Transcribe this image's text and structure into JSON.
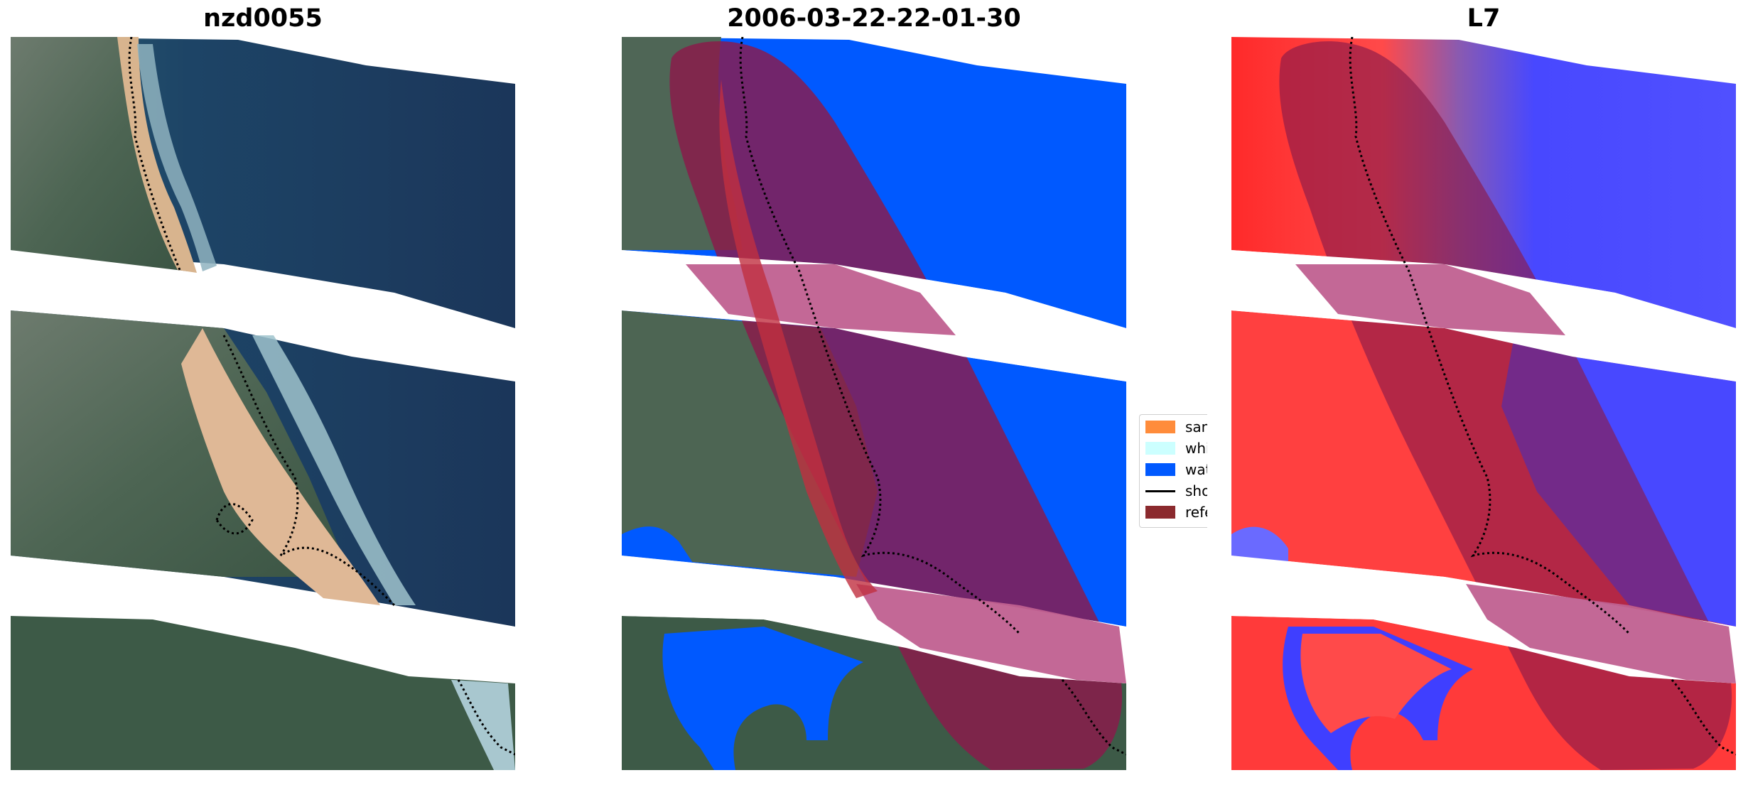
{
  "panels": [
    {
      "id": "rgb",
      "title": "nzd0055"
    },
    {
      "id": "classified",
      "title": "2006-03-22-22-01-30"
    },
    {
      "id": "index",
      "title": "L7"
    }
  ],
  "legend": {
    "items": [
      {
        "label": "sand",
        "color": "#ff8c3b",
        "kind": "patch"
      },
      {
        "label": "whitewater",
        "color": "#ccffff",
        "kind": "patch"
      },
      {
        "label": "water",
        "color": "#0059ff",
        "kind": "patch"
      },
      {
        "label": "shoreline",
        "color": "#000000",
        "kind": "line"
      },
      {
        "label": "reference shoreline buffer",
        "color": "#8b2a2e",
        "kind": "patch"
      }
    ]
  },
  "colors": {
    "ocean": "#1c3a5e",
    "land": "#3e5f4a",
    "sand": "#d9b591",
    "water_class": "#0059ff",
    "buffer": "#8b1a3a",
    "index_red": "#ff3a3a",
    "index_blue": "#4a4aff"
  }
}
